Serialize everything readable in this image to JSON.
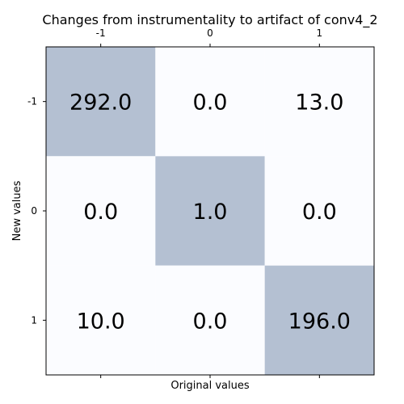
{
  "chart_data": {
    "type": "heatmap",
    "title": "Changes from instrumentality to artifact of conv4_2",
    "xlabel": "Original values",
    "ylabel": "New values",
    "x_categories": [
      "-1",
      "0",
      "1"
    ],
    "y_categories": [
      "-1",
      "0",
      "1"
    ],
    "values": [
      [
        292.0,
        0.0,
        13.0
      ],
      [
        0.0,
        1.0,
        0.0
      ],
      [
        10.0,
        0.0,
        196.0
      ]
    ],
    "cell_labels": [
      [
        "292.0",
        "0.0",
        "13.0"
      ],
      [
        "0.0",
        "1.0",
        "0.0"
      ],
      [
        "10.0",
        "0.0",
        "196.0"
      ]
    ],
    "colors": {
      "diagonal": "#b4c0d2",
      "off_diagonal": "#fbfcff",
      "frame": "#000000"
    },
    "grid": false
  }
}
